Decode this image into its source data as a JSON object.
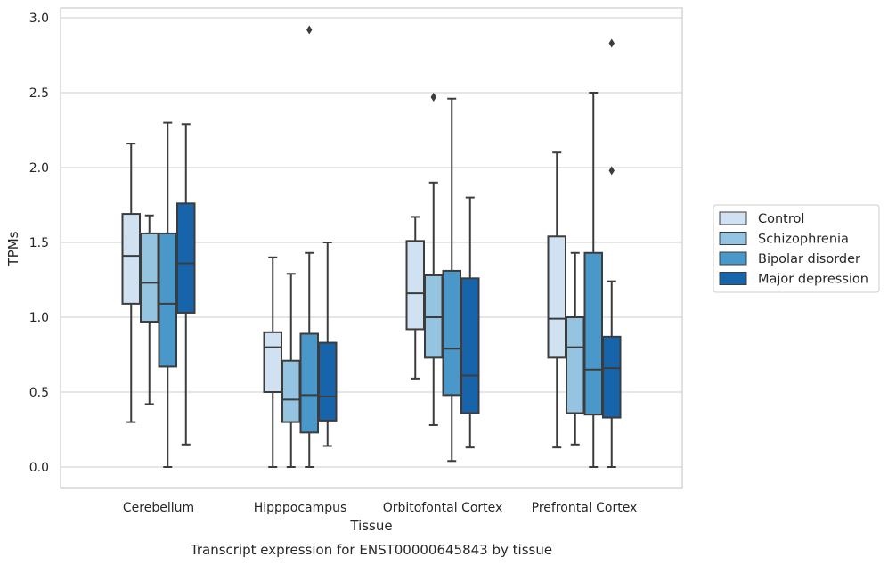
{
  "chart_data": {
    "type": "box",
    "title": "Transcript expression for ENST00000645843 by tissue",
    "xlabel": "Tissue",
    "ylabel": "TPMs",
    "ylim": [
      -0.14,
      3.07
    ],
    "yticks": [
      "0.0",
      "0.5",
      "1.0",
      "1.5",
      "2.0",
      "2.5",
      "3.0"
    ],
    "ytick_values": [
      0,
      0.5,
      1.0,
      1.5,
      2.0,
      2.5,
      3.0
    ],
    "grid": true,
    "legend_position": "right",
    "categories": [
      "Cerebellum",
      "Hipppocampus",
      "Orbitofontal Cortex",
      "Prefrontal Cortex"
    ],
    "series": [
      {
        "name": "Control",
        "color": "#d0e1f2",
        "boxes": [
          {
            "whislo": 0.3,
            "q1": 1.09,
            "med": 1.41,
            "q3": 1.69,
            "whishi": 2.16,
            "fliers": []
          },
          {
            "whislo": 0.0,
            "q1": 0.5,
            "med": 0.8,
            "q3": 0.9,
            "whishi": 1.4,
            "fliers": []
          },
          {
            "whislo": 0.59,
            "q1": 0.92,
            "med": 1.16,
            "q3": 1.51,
            "whishi": 1.67,
            "fliers": []
          },
          {
            "whislo": 0.13,
            "q1": 0.73,
            "med": 0.99,
            "q3": 1.54,
            "whishi": 2.1,
            "fliers": []
          }
        ]
      },
      {
        "name": "Schizophrenia",
        "color": "#94c4df",
        "boxes": [
          {
            "whislo": 0.42,
            "q1": 0.97,
            "med": 1.23,
            "q3": 1.56,
            "whishi": 1.68,
            "fliers": []
          },
          {
            "whislo": 0.0,
            "q1": 0.3,
            "med": 0.45,
            "q3": 0.71,
            "whishi": 1.29,
            "fliers": []
          },
          {
            "whislo": 0.28,
            "q1": 0.73,
            "med": 1.0,
            "q3": 1.28,
            "whishi": 1.9,
            "fliers": [
              2.47
            ]
          },
          {
            "whislo": 0.15,
            "q1": 0.36,
            "med": 0.8,
            "q3": 1.0,
            "whishi": 1.43,
            "fliers": []
          }
        ]
      },
      {
        "name": "Bipolar disorder",
        "color": "#4a98c9",
        "boxes": [
          {
            "whislo": 0.0,
            "q1": 0.67,
            "med": 1.09,
            "q3": 1.56,
            "whishi": 2.3,
            "fliers": []
          },
          {
            "whislo": 0.0,
            "q1": 0.23,
            "med": 0.48,
            "q3": 0.89,
            "whishi": 1.43,
            "fliers": [
              2.92
            ]
          },
          {
            "whislo": 0.04,
            "q1": 0.48,
            "med": 0.79,
            "q3": 1.31,
            "whishi": 2.46,
            "fliers": []
          },
          {
            "whislo": 0.0,
            "q1": 0.35,
            "med": 0.65,
            "q3": 1.43,
            "whishi": 2.5,
            "fliers": []
          }
        ]
      },
      {
        "name": "Major depression",
        "color": "#1764ab",
        "boxes": [
          {
            "whislo": 0.15,
            "q1": 1.03,
            "med": 1.36,
            "q3": 1.76,
            "whishi": 2.29,
            "fliers": []
          },
          {
            "whislo": 0.14,
            "q1": 0.31,
            "med": 0.47,
            "q3": 0.83,
            "whishi": 1.5,
            "fliers": []
          },
          {
            "whislo": 0.13,
            "q1": 0.36,
            "med": 0.61,
            "q3": 1.26,
            "whishi": 1.8,
            "fliers": []
          },
          {
            "whislo": 0.0,
            "q1": 0.33,
            "med": 0.66,
            "q3": 0.87,
            "whishi": 1.24,
            "fliers": [
              1.98,
              2.83
            ]
          }
        ]
      }
    ]
  }
}
